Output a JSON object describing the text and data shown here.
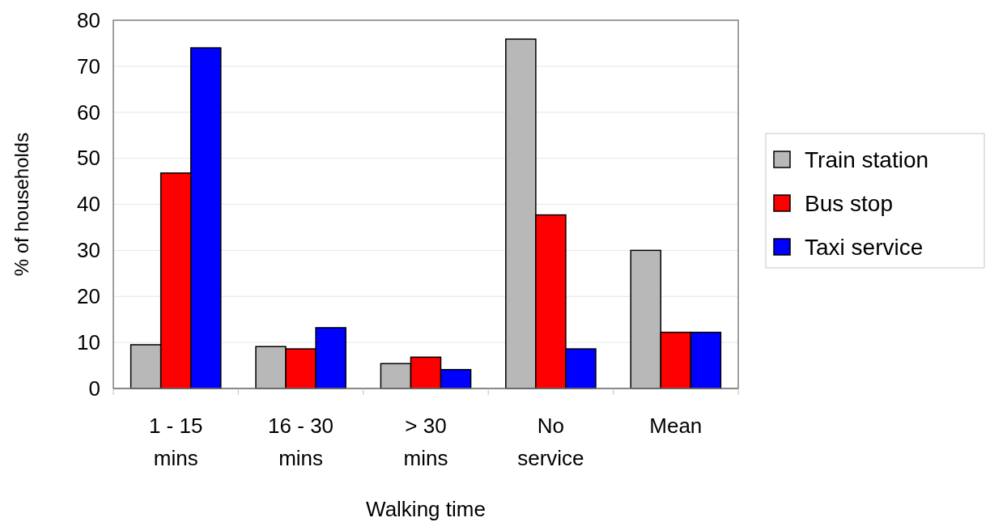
{
  "chart_data": {
    "type": "bar",
    "xlabel": "Walking time",
    "ylabel": "% of households",
    "categories": [
      "1 - 15 mins",
      "16 - 30 mins",
      "> 30 mins",
      "No service",
      "Mean"
    ],
    "series": [
      {
        "name": "Train station",
        "color": "#b8b8b8",
        "values": [
          9.5,
          9.1,
          5.4,
          75.9,
          30.0
        ]
      },
      {
        "name": "Bus stop",
        "color": "#ff0000",
        "values": [
          46.8,
          8.6,
          6.8,
          37.7,
          12.2
        ]
      },
      {
        "name": "Taxi service",
        "color": "#0000ff",
        "values": [
          74.0,
          13.2,
          4.1,
          8.6,
          12.2
        ]
      }
    ],
    "ylim": [
      0,
      80
    ],
    "yticks": [
      0,
      10,
      20,
      30,
      40,
      50,
      60,
      70,
      80
    ],
    "grid": "y",
    "legend": "right"
  }
}
